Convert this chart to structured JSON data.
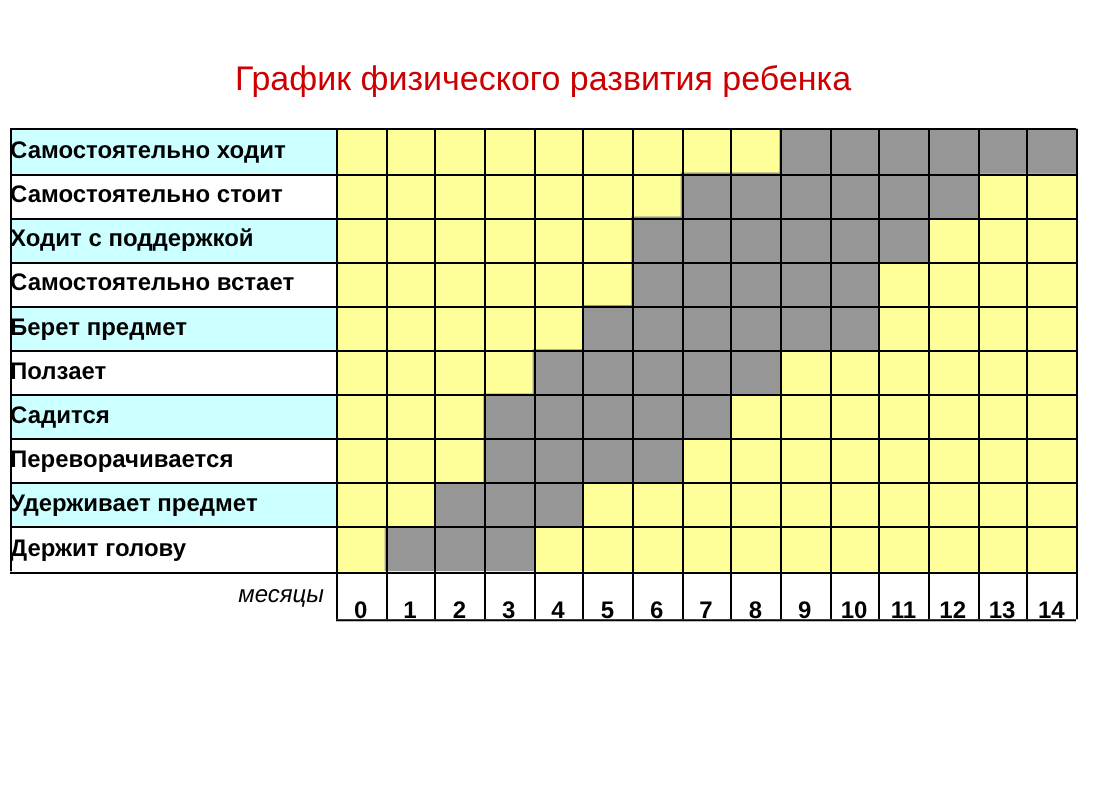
{
  "chart_data": {
    "type": "bar",
    "orientation": "horizontal",
    "title": "График физического развития ребенка",
    "xlabel": "месяцы",
    "categories": [
      "Самостоятельно ходит",
      "Самостоятельно стоит",
      "Ходит с поддержкой",
      "Самостоятельно встает",
      "Берет предмет",
      "Ползает",
      "Садится",
      "Переворачивается",
      "Удерживает предмет",
      "Держит голову"
    ],
    "base": [
      8.5,
      6.5,
      5.5,
      5.5,
      4.5,
      3.5,
      2.5,
      2.5,
      1.5,
      0.5
    ],
    "values": [
      6,
      6,
      6,
      5,
      6,
      5,
      5,
      4,
      3,
      3
    ],
    "color": "#969696",
    "xlim": [
      -0.5,
      14.5
    ],
    "xticks": [
      {
        "value": -0.5,
        "label": null
      },
      0,
      {
        "value": 0.5,
        "label": null
      },
      1,
      {
        "value": 1.5,
        "label": null
      },
      2,
      {
        "value": 2.5,
        "label": null
      },
      3,
      {
        "value": 3.5,
        "label": null
      },
      4,
      {
        "value": 4.5,
        "label": null
      },
      5,
      {
        "value": 5.5,
        "label": null
      },
      6,
      {
        "value": 6.5,
        "label": null
      },
      7,
      {
        "value": 7.5,
        "label": null
      },
      8,
      {
        "value": 8.5,
        "label": null
      },
      9,
      {
        "value": 9.5,
        "label": null
      },
      10,
      {
        "value": 10.5,
        "label": null
      },
      11,
      {
        "value": 11.5,
        "label": null
      },
      12,
      {
        "value": 12.5,
        "label": null
      },
      13,
      {
        "value": 13.5,
        "label": null
      },
      14,
      {
        "value": 14.5,
        "label": null
      }
    ],
    "grid": true,
    "legend": false
  }
}
